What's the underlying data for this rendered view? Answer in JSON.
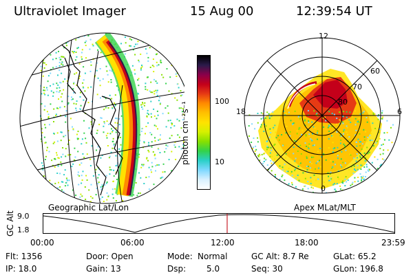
{
  "header": {
    "instrument": "Ultraviolet Imager",
    "date": "15 Aug 00",
    "time": "12:39:54 UT"
  },
  "geo_panel": {
    "label": "Geographic Lat/Lon"
  },
  "apex_panel": {
    "label": "Apex MLat/MLT",
    "mlt_labels": [
      "12",
      "18",
      "6",
      "0"
    ],
    "lat_labels": [
      "60",
      "70",
      "80"
    ]
  },
  "colorbar": {
    "label": "photon cm⁻²s⁻¹",
    "tick_labels": [
      "100",
      "10"
    ],
    "colors": [
      "#000000",
      "#2b1a4a",
      "#8a004a",
      "#c4001a",
      "#e63a14",
      "#ff8a00",
      "#ffc000",
      "#ffe200",
      "#d6f000",
      "#88e000",
      "#33d24a",
      "#2bd0c8",
      "#7fd8ff",
      "#d8f0ff",
      "#ffffff"
    ]
  },
  "altitude_plot": {
    "ylabel": "GC Alt",
    "ytick_top": "9.0",
    "ytick_bottom": "1.8",
    "x_labels": [
      "00:00",
      "06:00",
      "12:00",
      "18:00",
      "23:59"
    ],
    "current_time_marker_color": "#c8202a"
  },
  "info": {
    "flt": "Flt: 1356",
    "ip": "IP: 18.0",
    "door": "Door: Open",
    "gain": "Gain: 13",
    "mode_label": "Mode:",
    "mode_value": "Normal",
    "dsp_label": "Dsp:",
    "dsp_value": "5.0",
    "gc_alt": "GC Alt: 8.7 Re",
    "seq": "Seq: 30",
    "glat": "GLat: 65.2",
    "glon": "GLon: 196.8"
  }
}
